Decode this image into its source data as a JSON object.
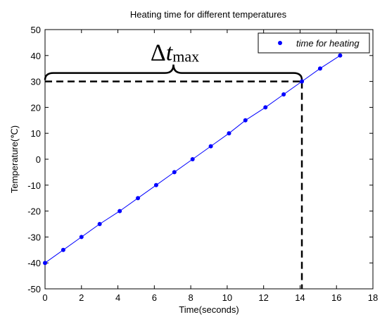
{
  "chart_data": {
    "type": "line",
    "title": "Heating time for different temperatures",
    "xlabel": "Time(seconds)",
    "ylabel": "Temperature(℃)",
    "xlim": [
      0,
      18
    ],
    "ylim": [
      -50,
      50
    ],
    "xticks": [
      "0",
      "2",
      "4",
      "6",
      "8",
      "10",
      "12",
      "14",
      "16",
      "18"
    ],
    "yticks": [
      "-50",
      "-40",
      "-30",
      "-20",
      "-10",
      "0",
      "10",
      "20",
      "30",
      "40",
      "50"
    ],
    "grid": false,
    "legend_position": "top-right",
    "series": [
      {
        "name": "time for heating",
        "color": "#0000ff",
        "marker": "dot",
        "x": [
          0,
          1.0,
          2.0,
          3.0,
          4.1,
          5.1,
          6.1,
          7.1,
          8.1,
          9.1,
          10.1,
          11.0,
          12.1,
          13.1,
          14.1,
          15.1,
          16.2
        ],
        "y": [
          -40,
          -35,
          -30,
          -25,
          -20,
          -15,
          -10,
          -5,
          0,
          5,
          10,
          15,
          20,
          25,
          30,
          35,
          40
        ]
      }
    ],
    "annotation": {
      "symbol": "Δ",
      "var": "t",
      "sub": "max",
      "x_end": 14.1,
      "y_level": 30,
      "style": "dashed black reference lines with brace"
    }
  }
}
